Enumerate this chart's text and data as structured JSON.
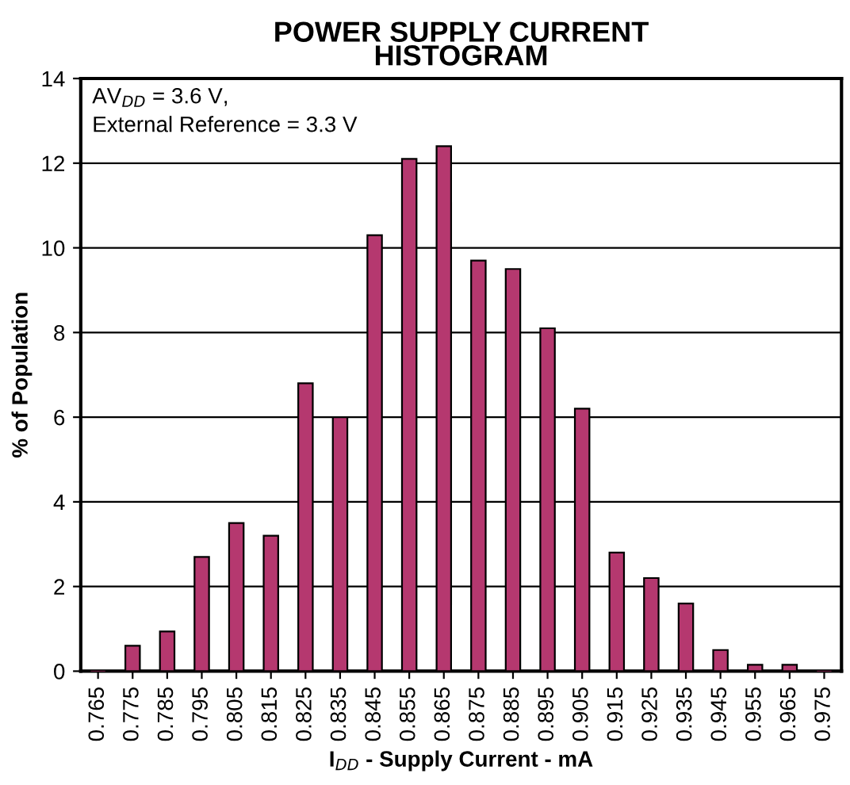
{
  "chart_data": {
    "type": "bar",
    "title": "POWER SUPPLY CURRENT\nHISTOGRAM",
    "xlabel": "I$_{DD}$ - Supply Current - mA",
    "ylabel": "% of Population",
    "categories": [
      "0.765",
      "0.775",
      "0.785",
      "0.795",
      "0.805",
      "0.815",
      "0.825",
      "0.835",
      "0.845",
      "0.855",
      "0.865",
      "0.875",
      "0.885",
      "0.895",
      "0.905",
      "0.915",
      "0.925",
      "0.935",
      "0.945",
      "0.955",
      "0.965",
      "0.975"
    ],
    "values": [
      0,
      0.6,
      0.94,
      2.7,
      3.5,
      3.2,
      6.8,
      6.0,
      10.3,
      12.1,
      12.4,
      9.7,
      9.5,
      8.1,
      6.2,
      2.8,
      2.2,
      1.6,
      0.5,
      0.15,
      0.15,
      0
    ],
    "color": "#b5386f",
    "ylim": [
      0,
      14
    ],
    "yticks": [
      0,
      2,
      4,
      6,
      8,
      10,
      12,
      14
    ],
    "grid": "y",
    "annotations": [
      "AV$_{DD}$ = 3.6 V,\nExternal Reference = 3.3 V"
    ]
  }
}
